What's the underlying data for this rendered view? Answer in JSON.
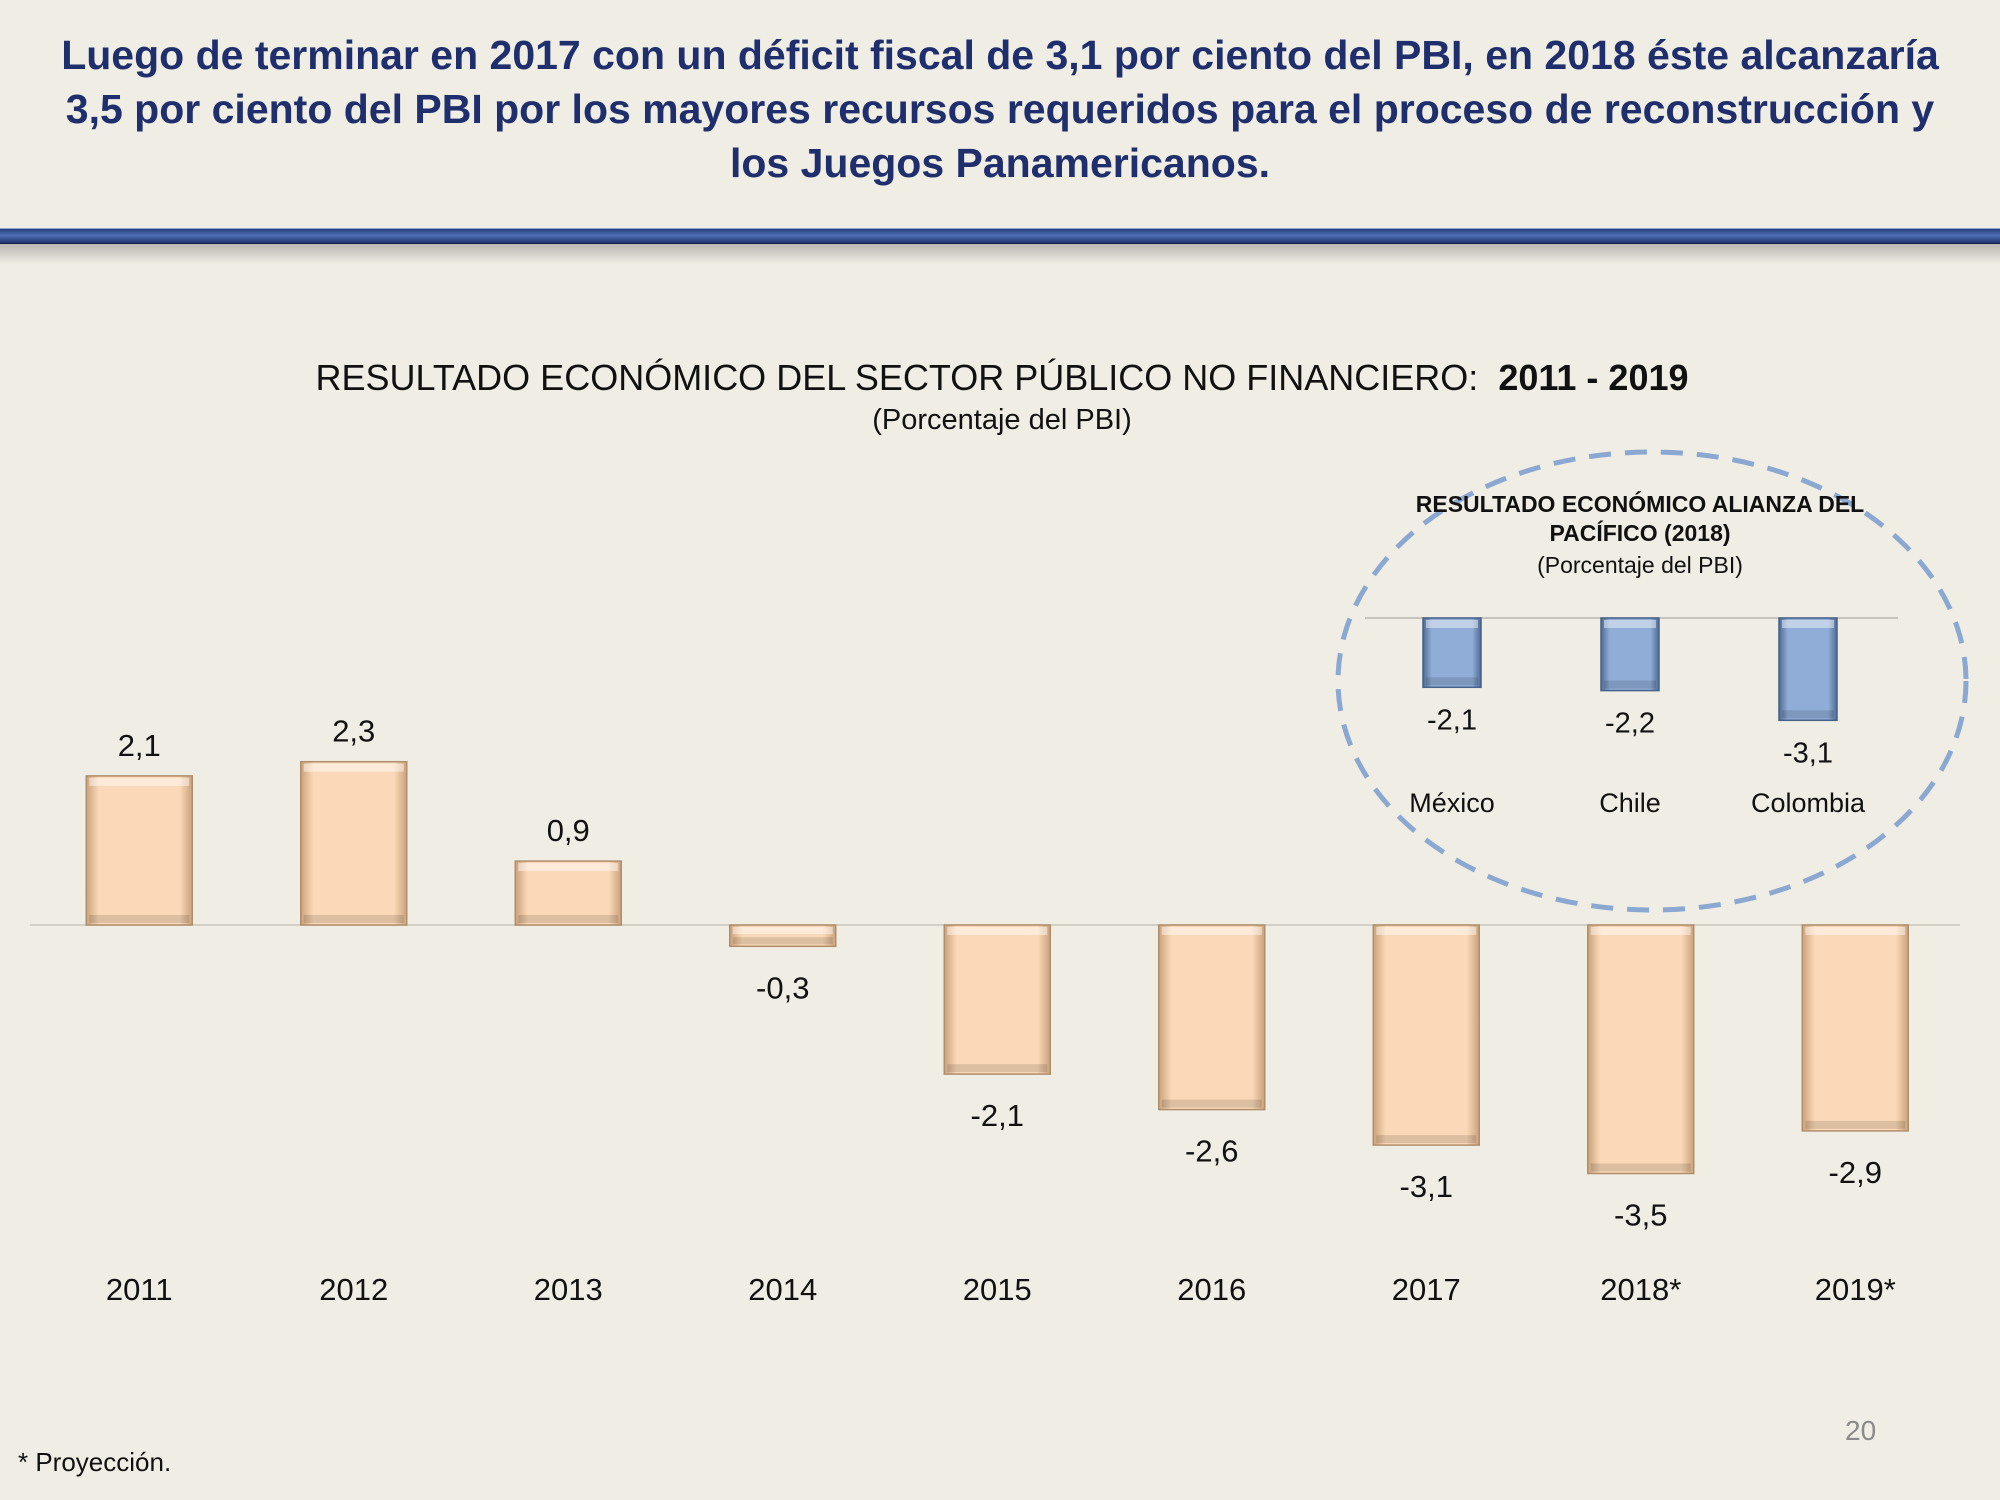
{
  "header": {
    "headline": "Luego de terminar en 2017 con un déficit fiscal de 3,1 por ciento del PBI, en 2018 éste alcanzaría 3,5 por ciento del PBI por los mayores recursos requeridos para el proceso de reconstrucción y los Juegos Panamericanos."
  },
  "chart_data": [
    {
      "type": "bar",
      "title": "RESULTADO ECONÓMICO DEL SECTOR PÚBLICO NO FINANCIERO:",
      "title_years": "2011 - 2019",
      "subtitle": "(Porcentaje del PBI)",
      "categories": [
        "2011",
        "2012",
        "2013",
        "2014",
        "2015",
        "2016",
        "2017",
        "2018*",
        "2019*"
      ],
      "values": [
        2.1,
        2.3,
        0.9,
        -0.3,
        -2.1,
        -2.6,
        -3.1,
        -3.5,
        -2.9
      ],
      "value_labels": [
        "2,1",
        "2,3",
        "0,9",
        "-0,3",
        "-2,1",
        "-2,6",
        "-3,1",
        "-3,5",
        "-2,9"
      ],
      "ylim": [
        -4,
        3
      ],
      "grid": false,
      "bar_color": "#fbd9b8"
    },
    {
      "type": "bar",
      "title": "RESULTADO ECONÓMICO ALIANZA DEL PACÍFICO (2018)",
      "subtitle": "(Porcentaje del PBI)",
      "categories": [
        "México",
        "Chile",
        "Colombia"
      ],
      "values": [
        -2.1,
        -2.2,
        -3.1
      ],
      "value_labels": [
        "-2,1",
        "-2,2",
        "-3,1"
      ],
      "grid": false,
      "bar_color": "#8fadd6",
      "border": "dashed-circle"
    }
  ],
  "footnote": "* Proyección.",
  "page_number": "20"
}
